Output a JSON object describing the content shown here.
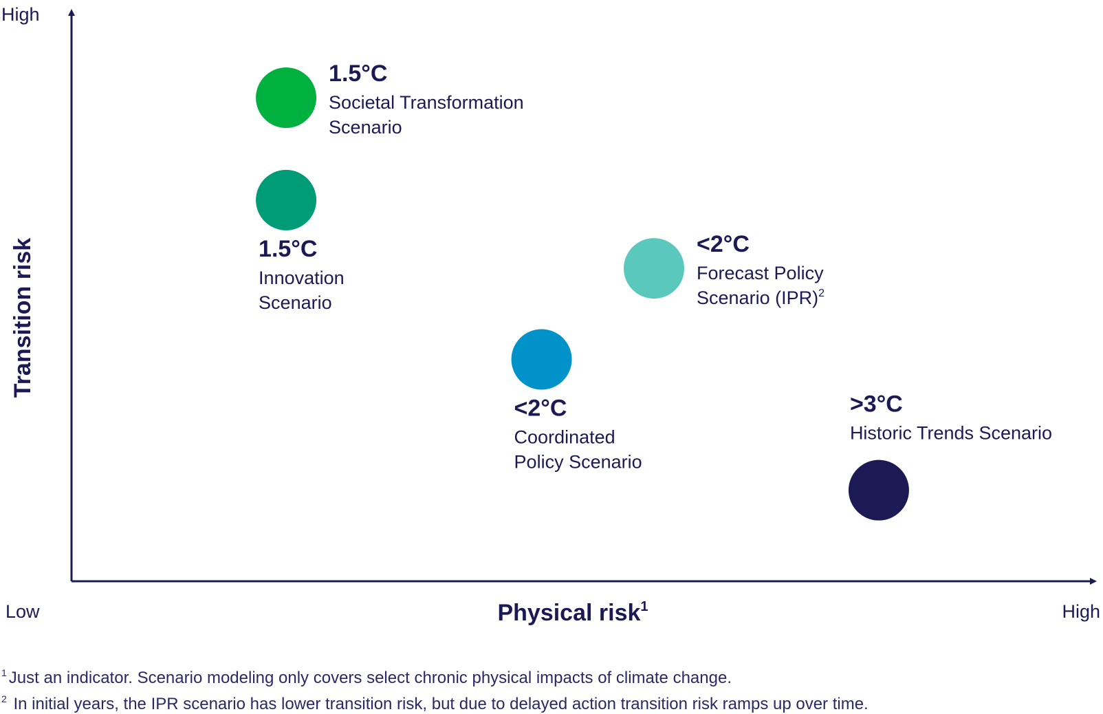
{
  "chart_data": {
    "type": "scatter",
    "title": "",
    "xlabel": "Physical risk",
    "xlabel_sup": "1",
    "ylabel": "Transition risk",
    "x_tick_labels": {
      "low": "Low",
      "high": "High"
    },
    "y_tick_labels": {
      "high": "High"
    },
    "xlim": [
      0,
      100
    ],
    "ylim": [
      0,
      100
    ],
    "grid": false,
    "legend": "none",
    "points": [
      {
        "id": "societal",
        "x": 21,
        "y": 85,
        "color": "#00b140",
        "temp": "1.5°C",
        "lines": [
          "Societal Transformation",
          "Scenario"
        ],
        "sup": "",
        "label_position": "right"
      },
      {
        "id": "innovation",
        "x": 21,
        "y": 67,
        "color": "#009b77",
        "temp": "1.5°C",
        "lines": [
          "Innovation",
          "Scenario"
        ],
        "sup": "",
        "label_position": "below"
      },
      {
        "id": "forecast",
        "x": 57,
        "y": 55,
        "color": "#5bc8be",
        "temp": "<2°C",
        "lines": [
          "Forecast Policy",
          "Scenario (IPR)"
        ],
        "sup": "2",
        "label_position": "right"
      },
      {
        "id": "coordinated",
        "x": 46,
        "y": 39,
        "color": "#0092c8",
        "temp": "<2°C",
        "lines": [
          "Coordinated",
          "Policy Scenario"
        ],
        "sup": "",
        "label_position": "below"
      },
      {
        "id": "historic",
        "x": 79,
        "y": 16,
        "color": "#1b1a55",
        "temp": ">3°C",
        "lines": [
          "Historic Trends Scenario"
        ],
        "sup": "",
        "label_position": "above"
      }
    ]
  },
  "footnotes": [
    {
      "mark": "1",
      "text": "Just an indicator. Scenario modeling only covers select chronic physical impacts of climate change."
    },
    {
      "mark": "2",
      "text": " In initial years, the IPR scenario has lower transition risk, but due to delayed action transition risk ramps up over time."
    }
  ]
}
